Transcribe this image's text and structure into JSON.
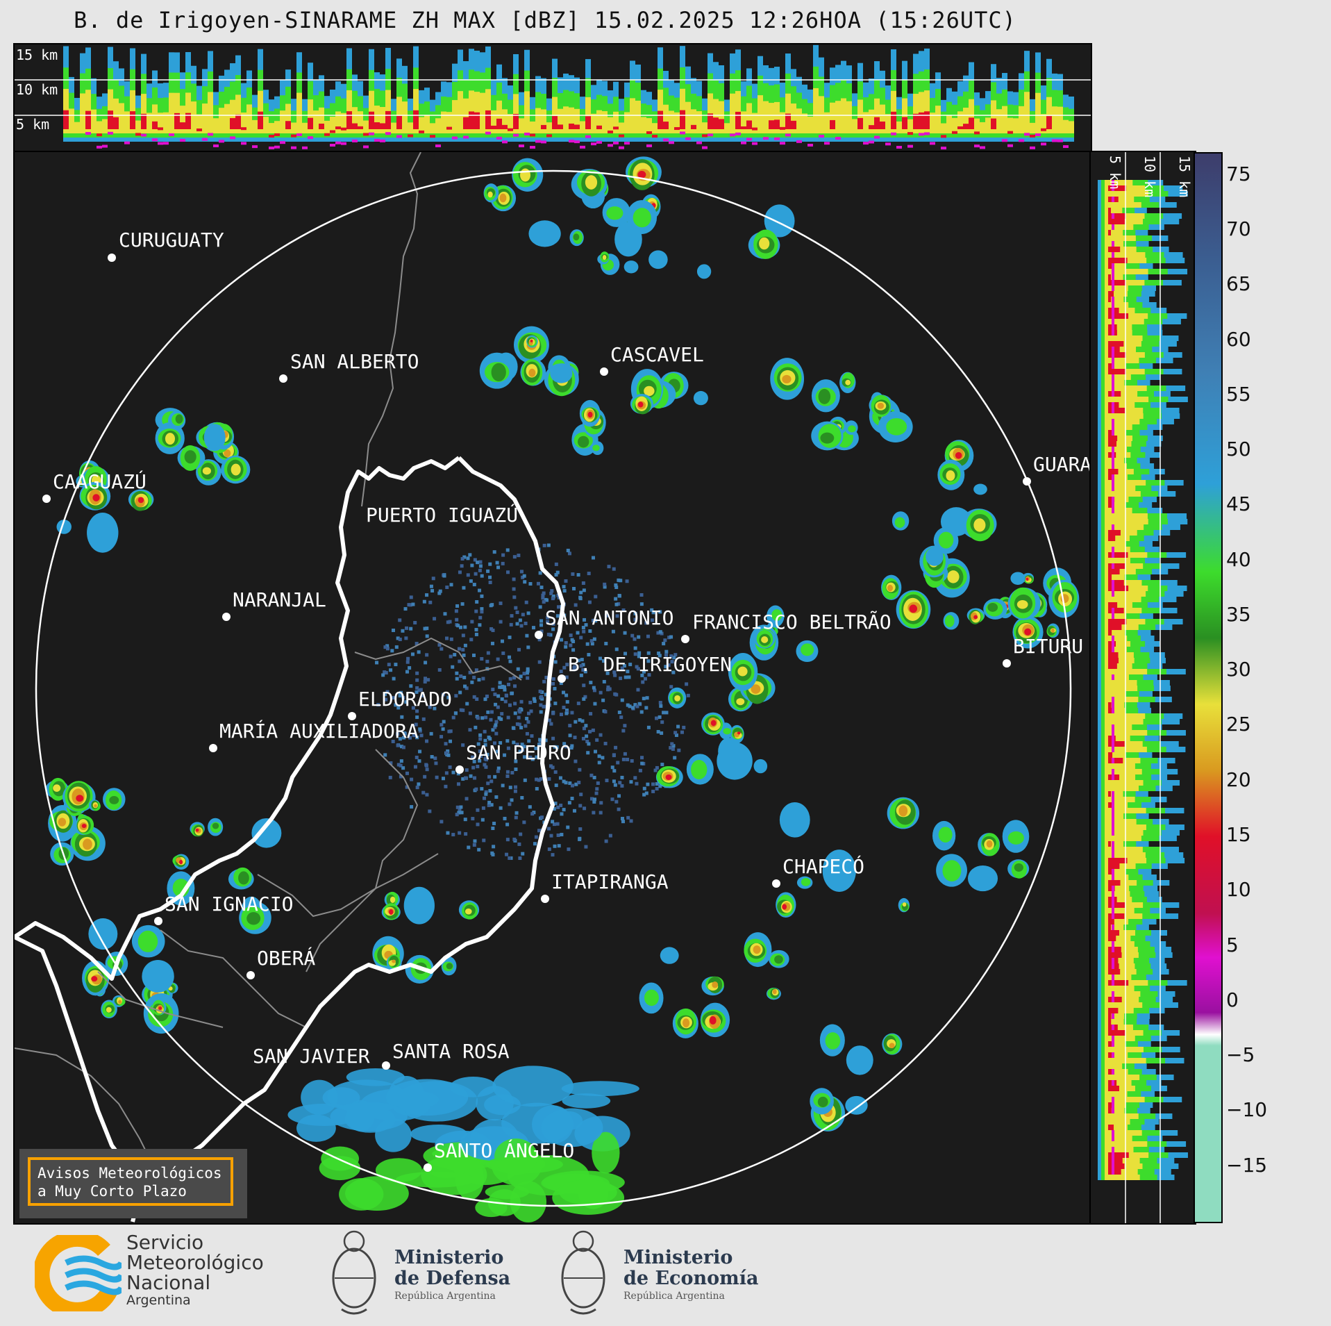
{
  "title": "B. de Irigoyen-SINARAME ZH MAX [dBZ] 15.02.2025 12:26HOA (15:26UTC)",
  "top_panel": {
    "height_labels": [
      "15 km",
      "10 km",
      "5 km"
    ]
  },
  "side_panel": {
    "height_labels": [
      "5 km",
      "10 km",
      "15 km"
    ]
  },
  "colorbar": {
    "unit": "dBZ",
    "ticks": [
      "75",
      "70",
      "65",
      "60",
      "55",
      "50",
      "45",
      "40",
      "35",
      "30",
      "25",
      "20",
      "15",
      "10",
      "5",
      "0",
      "−5",
      "−10",
      "−15"
    ],
    "range": [
      -20,
      77
    ],
    "color_stops": [
      {
        "from": -20,
        "to": -10,
        "color": "#3d3d6b"
      },
      {
        "from": -10,
        "to": 0,
        "color": "#3b5f92"
      },
      {
        "from": 0,
        "to": 10,
        "color": "#3f80b5"
      },
      {
        "from": 10,
        "to": 18,
        "color": "#2ea0d8"
      },
      {
        "from": 18,
        "to": 24,
        "color": "#3ddc2c"
      },
      {
        "from": 24,
        "to": 30,
        "color": "#2a8f22"
      },
      {
        "from": 30,
        "to": 36,
        "color": "#e8e03a"
      },
      {
        "from": 36,
        "to": 42,
        "color": "#d99a20"
      },
      {
        "from": 42,
        "to": 49,
        "color": "#e01028"
      },
      {
        "from": 49,
        "to": 53,
        "color": "#c01050"
      },
      {
        "from": 53,
        "to": 58,
        "color": "#e010d0"
      },
      {
        "from": 58,
        "to": 60,
        "color": "#9a10a0"
      },
      {
        "from": 60,
        "to": 61,
        "color": "#ffffff"
      },
      {
        "from": 61,
        "to": 77,
        "color": "#8fdcc0"
      }
    ]
  },
  "cities": [
    {
      "name": "CURUGUATY"
    },
    {
      "name": "SAN ALBERTO"
    },
    {
      "name": "CAAGUAZÚ"
    },
    {
      "name": "CASCAVEL"
    },
    {
      "name": "PUERTO IGUAZÚ"
    },
    {
      "name": "GUARA"
    },
    {
      "name": "NARANJAL"
    },
    {
      "name": "SAN ANTONIO"
    },
    {
      "name": "FRANCISCO BELTRÃO"
    },
    {
      "name": "BITURU"
    },
    {
      "name": "B. DE IRIGOYEN"
    },
    {
      "name": "ELDORADO"
    },
    {
      "name": "MARÍA AUXILIADORA"
    },
    {
      "name": "SAN PEDRO"
    },
    {
      "name": "CHAPECÓ"
    },
    {
      "name": "ITAPIRANGA"
    },
    {
      "name": "SAN IGNACIO"
    },
    {
      "name": "OBERÁ"
    },
    {
      "name": "SAN JAVIER"
    },
    {
      "name": "SANTA ROSA"
    },
    {
      "name": "SANTO ÁNGELO"
    }
  ],
  "warning_box": {
    "line1": "Avisos Meteorológicos",
    "line2": "a Muy Corto Plazo"
  },
  "logos": {
    "smn": {
      "line1": "Servicio",
      "line2": "Meteorológico",
      "line3": "Nacional",
      "line4": "Argentina"
    },
    "defensa": {
      "line1": "Ministerio",
      "line2": "de Defensa",
      "line3": "República Argentina"
    },
    "economia": {
      "line1": "Ministerio",
      "line2": "de Economía",
      "line3": "República Argentina"
    }
  },
  "colors": {
    "background": "#1b1b1b",
    "range_ring": "#ffffff",
    "border_main": "#ffffff",
    "border_gray": "#8c8c8c",
    "warning_border": "#f7a100",
    "smn_orange": "#f7a400",
    "smn_blue": "#2aa7e0"
  }
}
